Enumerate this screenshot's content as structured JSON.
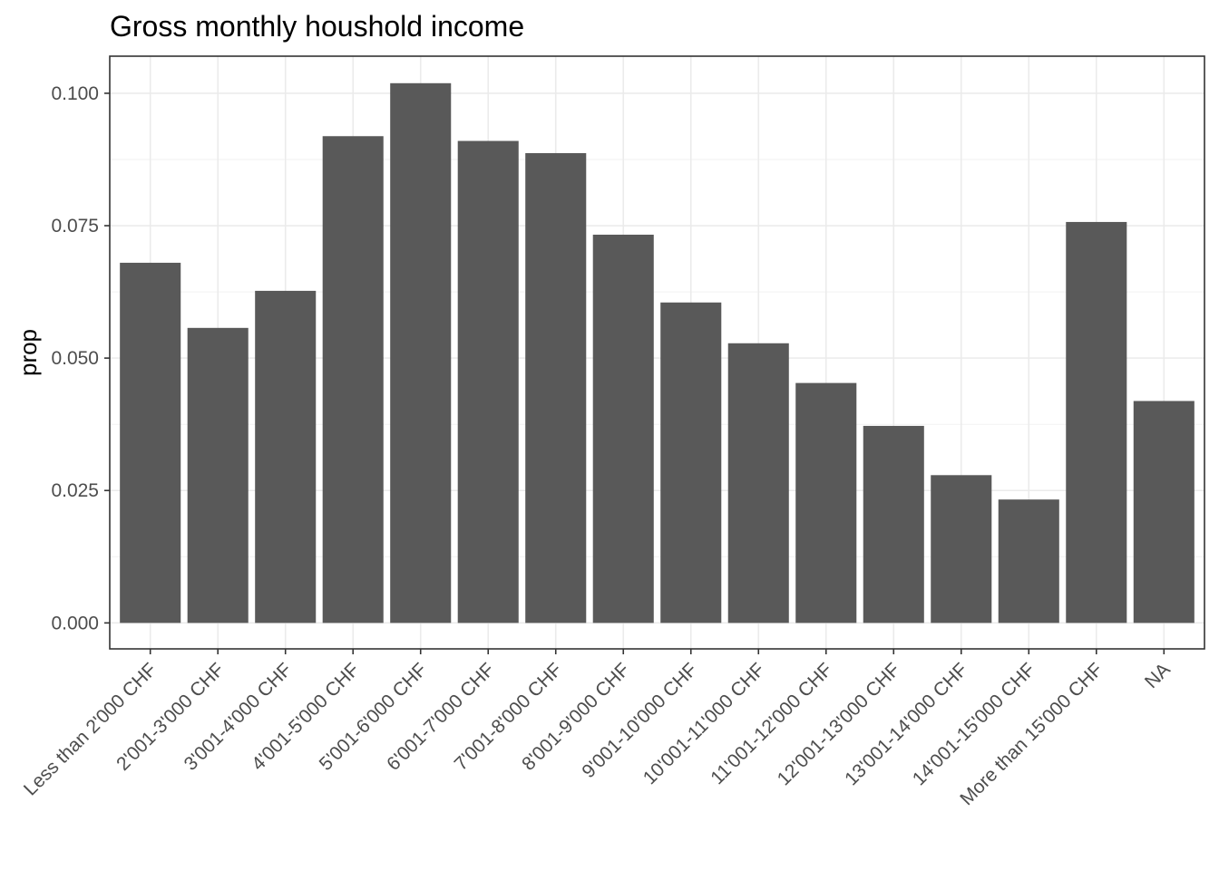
{
  "chart_data": {
    "type": "bar",
    "title": "Gross monthly houshold income",
    "xlabel": "",
    "ylabel": "prop",
    "categories": [
      "Less than 2'000 CHF",
      "2'001-3'000 CHF",
      "3'001-4'000 CHF",
      "4'001-5'000 CHF",
      "5'001-6'000 CHF",
      "6'001-7'000 CHF",
      "7'001-8'000 CHF",
      "8'001-9'000 CHF",
      "9'001-10'000 CHF",
      "10'001-11'000 CHF",
      "11'001-12'000 CHF",
      "12'001-13'000 CHF",
      "13'001-14'000 CHF",
      "14'001-15'000 CHF",
      "More than 15'000 CHF",
      "NA"
    ],
    "values": [
      0.068,
      0.0557,
      0.0627,
      0.0919,
      0.1019,
      0.091,
      0.0887,
      0.0733,
      0.0605,
      0.0528,
      0.0453,
      0.0372,
      0.0279,
      0.0233,
      0.0757,
      0.0419
    ],
    "yticks": [
      "0.000",
      "0.025",
      "0.050",
      "0.075",
      "0.100"
    ],
    "ylim": [
      -0.0049,
      0.107
    ],
    "bar_color": "#595959",
    "grid": true
  }
}
